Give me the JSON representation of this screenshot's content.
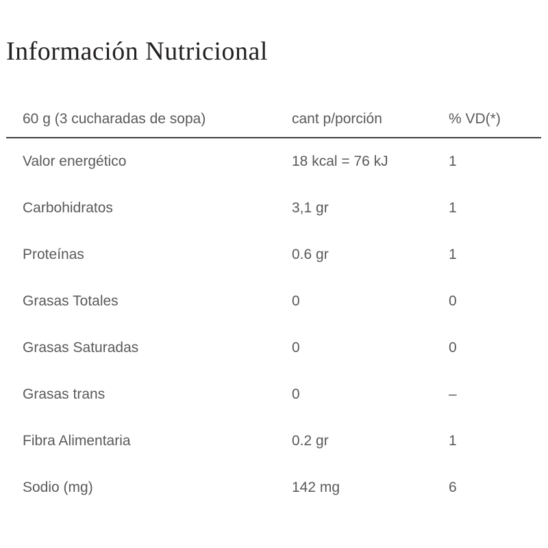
{
  "page": {
    "title": "Información Nutricional"
  },
  "table": {
    "header": {
      "serving": "60 g (3 cucharadas de sopa)",
      "amount": "cant p/porción",
      "daily_value": "% VD(*)"
    },
    "rows": [
      {
        "label": "Valor energético",
        "amount": "18 kcal = 76 kJ",
        "vd": "1"
      },
      {
        "label": "Carbohidratos",
        "amount": "3,1 gr",
        "vd": "1"
      },
      {
        "label": "Proteínas",
        "amount": "0.6 gr",
        "vd": "1"
      },
      {
        "label": "Grasas Totales",
        "amount": "0",
        "vd": "0"
      },
      {
        "label": "Grasas Saturadas",
        "amount": "0",
        "vd": "0"
      },
      {
        "label": "Grasas trans",
        "amount": "0",
        "vd": "–"
      },
      {
        "label": "Fibra Alimentaria",
        "amount": "0.2 gr",
        "vd": "1"
      },
      {
        "label": "Sodio (mg)",
        "amount": "142 mg",
        "vd": "6"
      }
    ]
  },
  "colors": {
    "background": "#ffffff",
    "title_text": "#232020",
    "body_text": "#58595b",
    "header_rule": "#3d3d3d"
  }
}
